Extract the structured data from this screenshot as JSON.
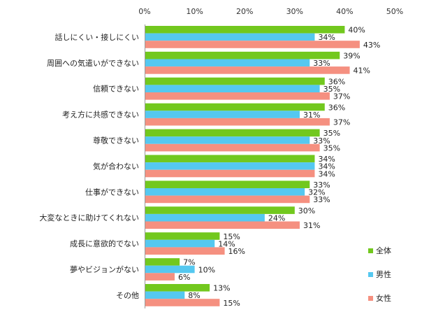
{
  "chart_data": {
    "type": "bar",
    "orientation": "horizontal",
    "categories": [
      "話しにくい・接しにくい",
      "周囲への気遣いができない",
      "信頼できない",
      "考え方に共感できない",
      "尊敬できない",
      "気が合わない",
      "仕事ができない",
      "大変なときに助けてくれない",
      "成長に意欲的でない",
      "夢やビジョンがない",
      "その他"
    ],
    "series": [
      {
        "name": "全体",
        "color": "#72c81e",
        "values": [
          40,
          39,
          36,
          36,
          35,
          34,
          33,
          30,
          15,
          7,
          13
        ]
      },
      {
        "name": "男性",
        "color": "#55c8f0",
        "values": [
          34,
          33,
          35,
          31,
          33,
          34,
          32,
          24,
          14,
          10,
          8
        ]
      },
      {
        "name": "女性",
        "color": "#f59080",
        "values": [
          43,
          41,
          37,
          37,
          35,
          34,
          33,
          31,
          16,
          6,
          15
        ]
      }
    ],
    "xlim": [
      0,
      50
    ],
    "xticks": [
      "0%",
      "10%",
      "20%",
      "30%",
      "40%",
      "50%"
    ],
    "value_suffix": "%",
    "grid": false,
    "legend_position": "bottom-right"
  }
}
